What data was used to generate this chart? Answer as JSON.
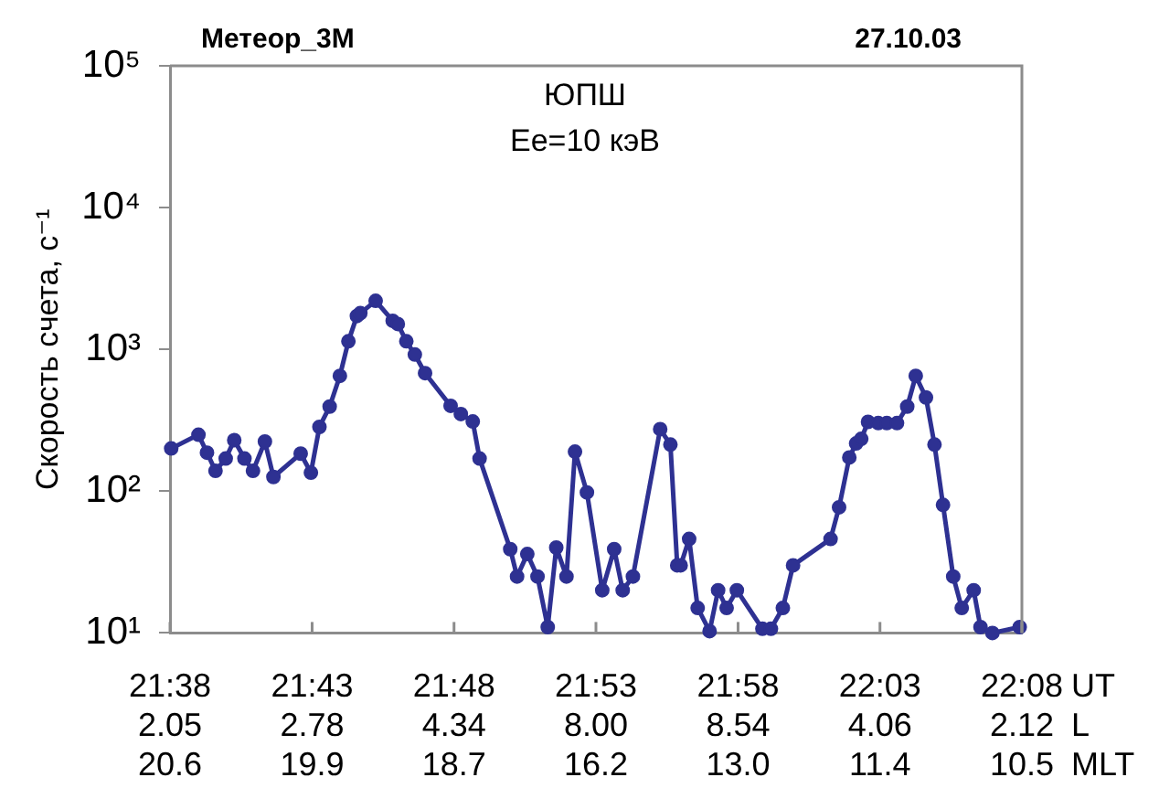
{
  "chart_data": {
    "type": "line",
    "title": "Метеор_3М",
    "subtitle": "27.10.03",
    "annotations": [
      "ЮПШ",
      "Ee=10 кэВ",
      "2.05",
      "2.78",
      "4.34",
      "8.00",
      "8.54",
      "4.06",
      "2.12",
      "L",
      "20.6",
      "19.9",
      "18.7",
      "16.2",
      "13.0",
      "11.4",
      "10.5",
      "MLT"
    ],
    "ylabel": "Скорость счета, с⁻¹",
    "xlabel": "UT",
    "x": [
      21.634,
      21.65,
      21.655,
      21.66,
      21.666,
      21.671,
      21.677,
      21.682,
      21.689,
      21.694,
      21.71,
      21.716,
      21.721,
      21.727,
      21.733,
      21.738,
      21.743,
      21.745,
      21.754,
      21.764,
      21.767,
      21.772,
      21.777,
      21.783,
      21.798,
      21.804,
      21.811,
      21.815,
      21.833,
      21.837,
      21.843,
      21.849,
      21.855,
      21.86,
      21.866,
      21.871,
      21.878,
      21.887,
      21.894,
      21.899,
      21.905,
      21.921,
      21.927,
      21.931,
      21.933,
      21.938,
      21.943,
      21.95,
      21.955,
      21.96,
      21.966,
      21.981,
      21.986,
      21.993,
      21.999,
      22.021,
      22.026,
      22.032,
      22.036,
      22.039,
      22.043,
      22.049,
      22.054,
      22.06,
      22.066,
      22.071,
      22.077,
      22.082,
      22.087,
      22.093,
      22.098,
      22.105,
      22.109,
      22.116,
      22.132
    ],
    "series": [
      {
        "color": "#2e3192",
        "values": [
          200,
          250,
          187,
          139,
          170,
          229,
          170,
          139,
          224,
          126,
          184,
          135,
          284,
          395,
          650,
          1140,
          1720,
          1800,
          2200,
          1590,
          1510,
          1140,
          920,
          680,
          400,
          350,
          310,
          170,
          39,
          25,
          36,
          25,
          11,
          40,
          25,
          190,
          98,
          20,
          39,
          20,
          25,
          274,
          213,
          30,
          30,
          46,
          15,
          10.3,
          20,
          15,
          20,
          10.7,
          10.7,
          15,
          30,
          46,
          77,
          173,
          217,
          234,
          308,
          302,
          302,
          302,
          395,
          650,
          458,
          213,
          80,
          25,
          15,
          20,
          11,
          10,
          11
        ]
      }
    ],
    "xlim": [
      21.6333,
      22.1333
    ],
    "xticks": [
      {
        "value": 21.6333,
        "label": "21:38"
      },
      {
        "value": 21.7167,
        "label": "21:43"
      },
      {
        "value": 21.8,
        "label": "21:48"
      },
      {
        "value": 21.8833,
        "label": "21:53"
      },
      {
        "value": 21.9667,
        "label": "21:58"
      },
      {
        "value": 22.05,
        "label": "22:03"
      },
      {
        "value": 22.1333,
        "label": "22:08"
      }
    ],
    "ylim": [
      10,
      100000
    ],
    "yticks": [
      {
        "value": 10,
        "label": "10¹"
      },
      {
        "value": 100,
        "label": "10²"
      },
      {
        "value": 1000,
        "label": "10³"
      },
      {
        "value": 10000,
        "label": "10⁴"
      },
      {
        "value": 100000,
        "label": "10⁵"
      }
    ],
    "log": "y",
    "grid": false,
    "legend": false,
    "marker": "circle",
    "line_style": "solid"
  }
}
